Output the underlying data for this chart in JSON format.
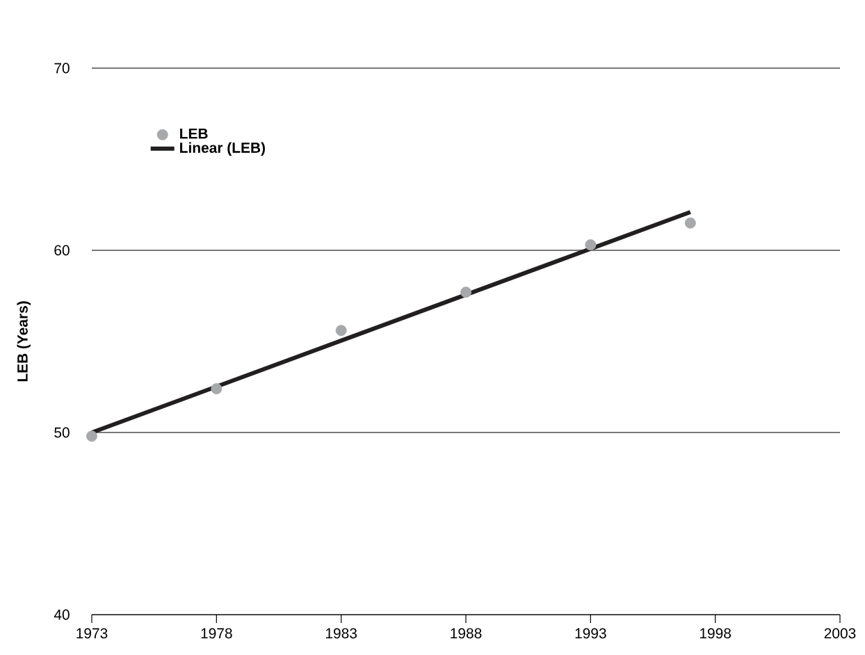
{
  "chart_data": {
    "type": "scatter",
    "ylabel": "LEB (Years)",
    "x": [
      1973,
      1978,
      1983,
      1988,
      1993,
      1997
    ],
    "series": [
      {
        "name": "LEB",
        "color": "#a6a8ab",
        "marker": "circle",
        "values": [
          49.8,
          52.4,
          55.6,
          57.7,
          60.3,
          61.5
        ]
      },
      {
        "name": "Linear (LEB)",
        "type": "line",
        "color": "#231f20",
        "marker": "none",
        "x": [
          1973,
          1997
        ],
        "values": [
          50.0,
          62.1
        ]
      }
    ],
    "xlim": [
      1973,
      2003
    ],
    "xticks": [
      1973,
      1978,
      1983,
      1988,
      1993,
      1998,
      2003
    ],
    "ylim": [
      40,
      70
    ],
    "yticks": [
      40,
      50,
      60,
      70
    ],
    "grid": "y",
    "legend": "top left"
  }
}
